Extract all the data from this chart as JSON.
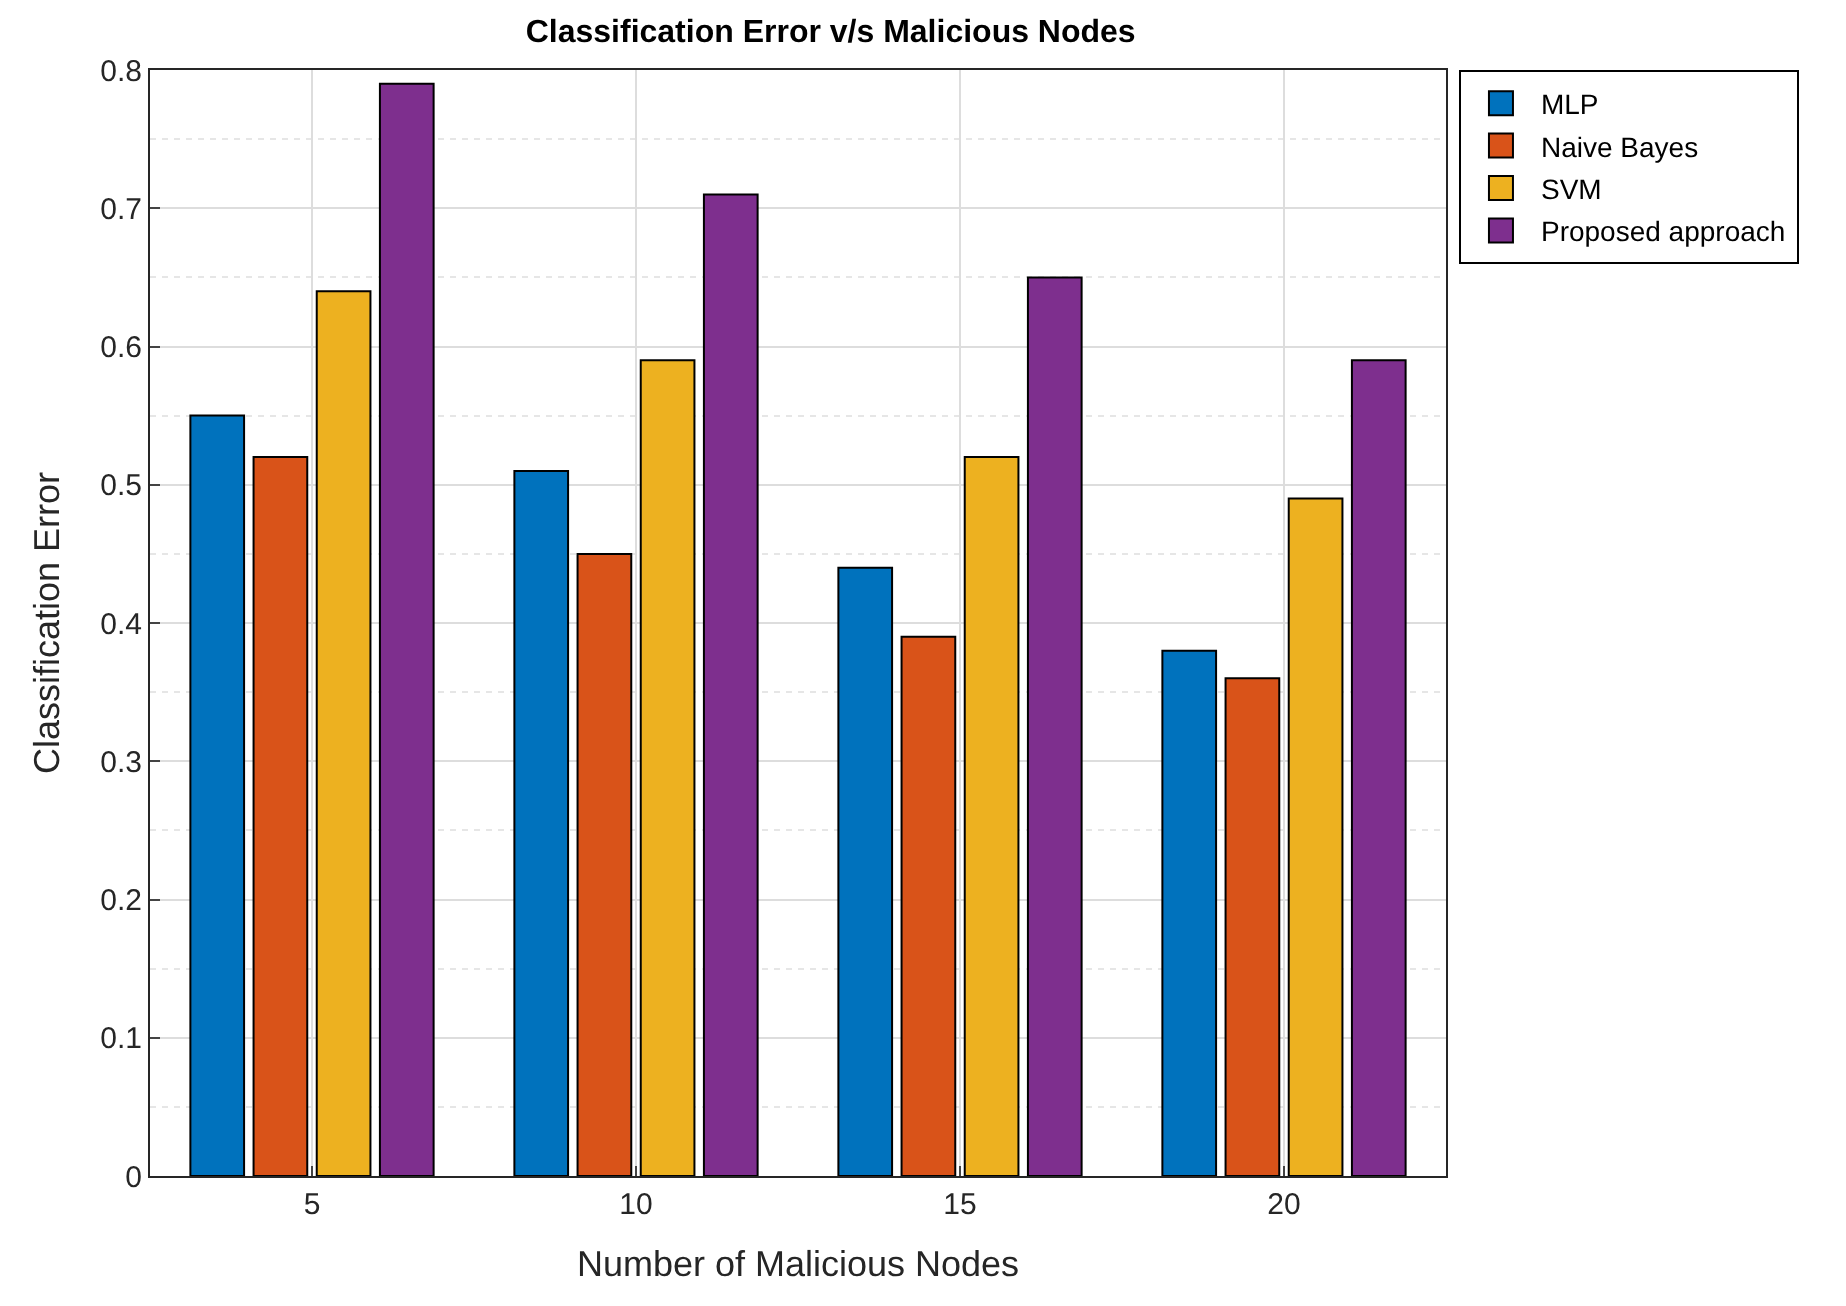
{
  "chart_data": {
    "type": "bar",
    "title": "Classification Error v/s Malicious Nodes",
    "xlabel": "Number of Malicious Nodes",
    "ylabel": "Classification Error",
    "categories": [
      "5",
      "10",
      "15",
      "20"
    ],
    "series": [
      {
        "name": "MLP",
        "color": "#0072bd",
        "values": [
          0.55,
          0.51,
          0.44,
          0.38
        ]
      },
      {
        "name": "Naive Bayes",
        "color": "#d95319",
        "values": [
          0.52,
          0.45,
          0.39,
          0.36
        ]
      },
      {
        "name": "SVM",
        "color": "#edb120",
        "values": [
          0.64,
          0.59,
          0.52,
          0.49
        ]
      },
      {
        "name": "Proposed approach",
        "color": "#7e2f8e",
        "values": [
          0.79,
          0.71,
          0.65,
          0.59
        ]
      }
    ],
    "ylim": [
      0,
      0.8
    ],
    "yticks": [
      0,
      0.1,
      0.2,
      0.3,
      0.4,
      0.5,
      0.6,
      0.7,
      0.8
    ],
    "grid": true,
    "legend": "top right"
  }
}
